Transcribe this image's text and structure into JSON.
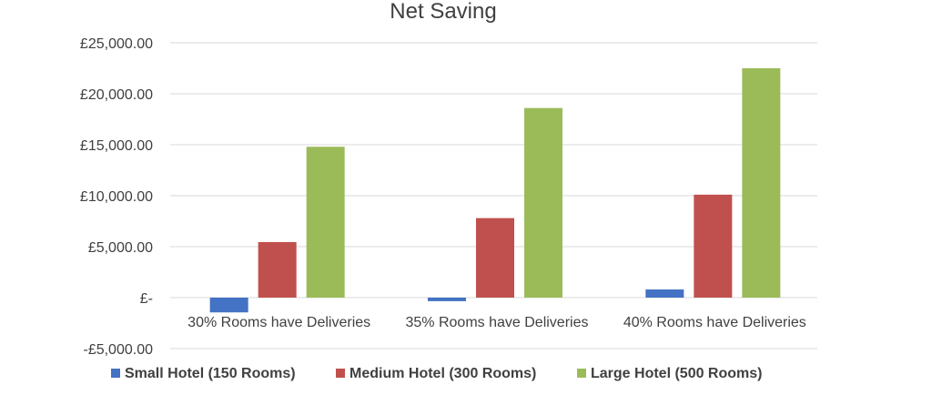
{
  "chart_data": {
    "type": "bar",
    "title": "Net Saving",
    "xlabel": "",
    "ylabel": "",
    "categories": [
      "30% Rooms have Deliveries",
      "35% Rooms have Deliveries",
      "40% Rooms have Deliveries"
    ],
    "series": [
      {
        "name": "Small Hotel (150 Rooms)",
        "color": "#4472c4",
        "values": [
          -1450,
          -350,
          800
        ]
      },
      {
        "name": "Medium Hotel (300 Rooms)",
        "color": "#c0504d",
        "values": [
          5450,
          7800,
          10100
        ]
      },
      {
        "name": "Large Hotel (500 Rooms)",
        "color": "#9bbb59",
        "values": [
          14800,
          18600,
          22500
        ]
      }
    ],
    "ylim": [
      -5000,
      25000
    ],
    "yticks": [
      25000,
      20000,
      15000,
      10000,
      5000,
      0,
      -5000
    ],
    "ytick_labels": [
      "£25,000.00",
      "£20,000.00",
      "£15,000.00",
      "£10,000.00",
      "£5,000.00",
      "£-",
      "-£5,000.00"
    ],
    "grid": true,
    "legend_position": "bottom"
  }
}
